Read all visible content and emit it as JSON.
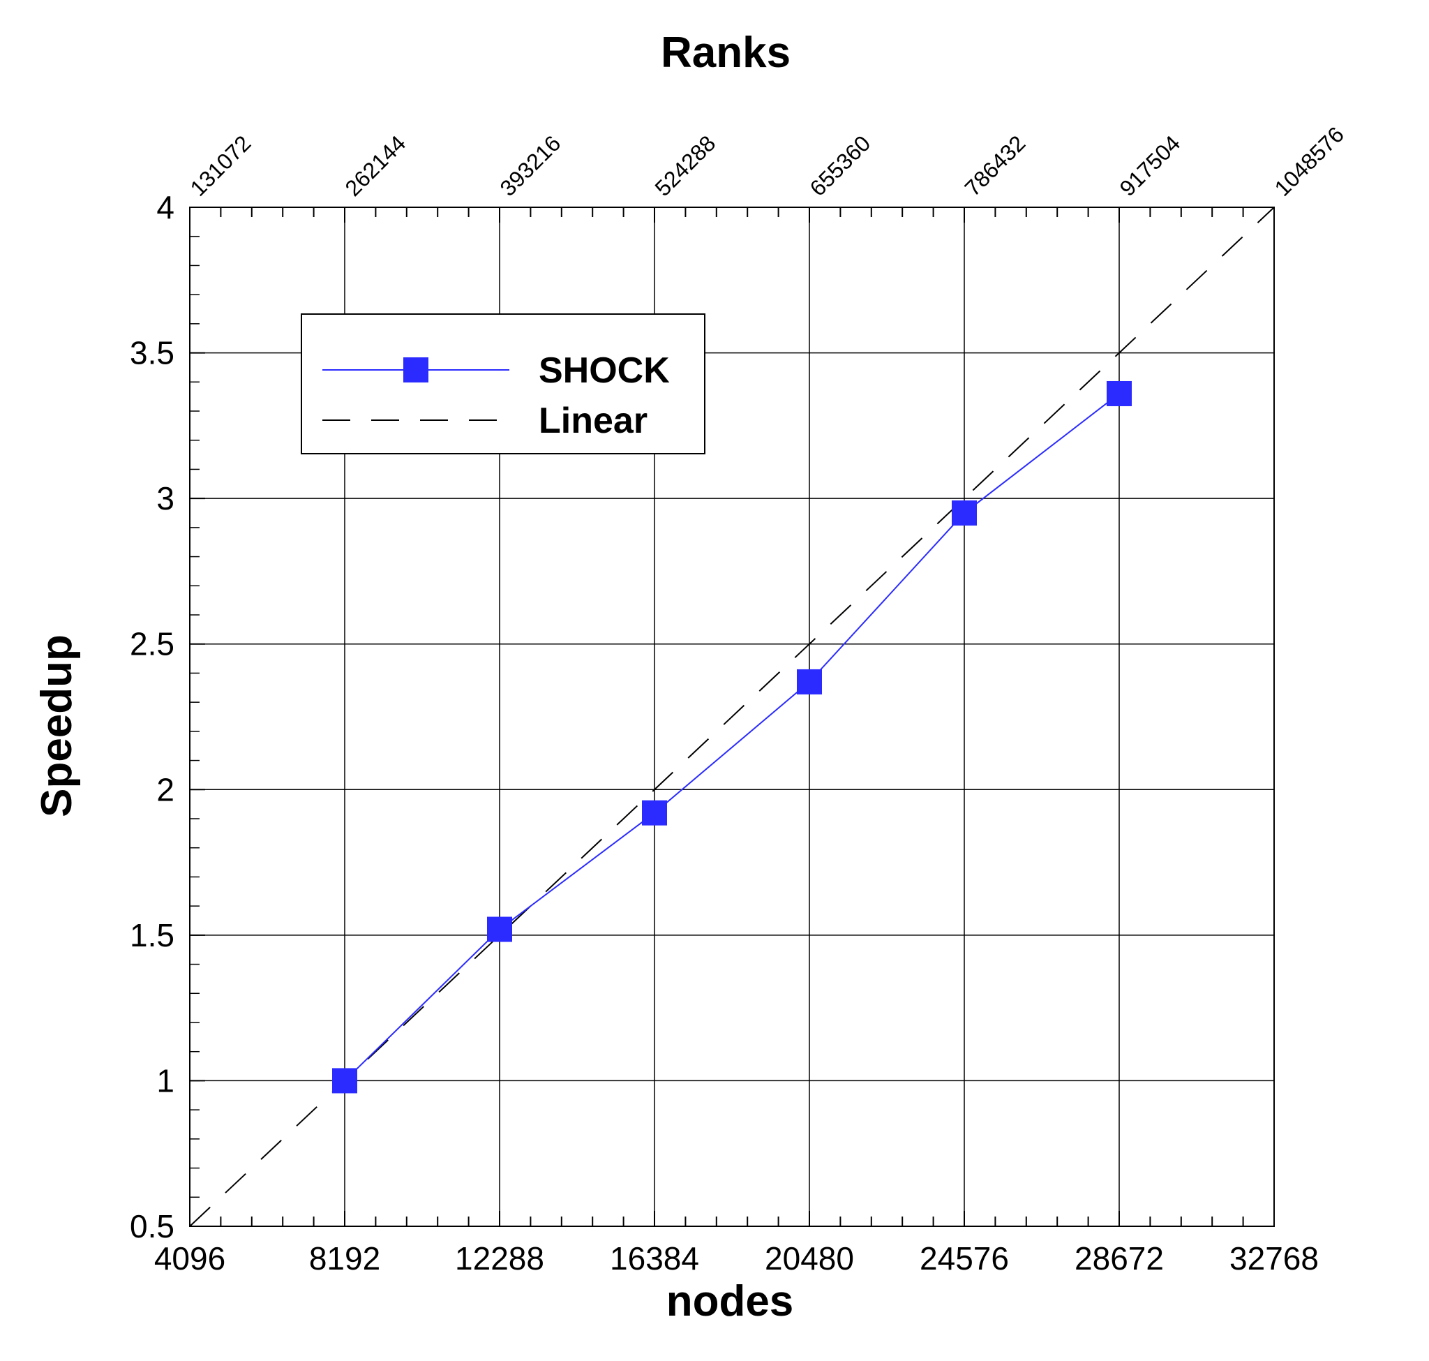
{
  "chart_data": {
    "type": "line",
    "title": "Ranks",
    "xlabel": "nodes",
    "ylabel": "Speedup",
    "x_ticks": [
      4096,
      8192,
      12288,
      16384,
      20480,
      24576,
      28672,
      32768
    ],
    "x_tick_labels": [
      "4096",
      "8192",
      "12288",
      "16384",
      "20480",
      "24576",
      "28672",
      "32768"
    ],
    "xlim": [
      4096,
      32768
    ],
    "top_axis": {
      "label": "Ranks",
      "ticks": [
        "131072",
        "262144",
        "393216",
        "524288",
        "655360",
        "786432",
        "917504",
        "1048576"
      ]
    },
    "y_ticks": [
      0.5,
      1,
      1.5,
      2,
      2.5,
      3,
      3.5,
      4
    ],
    "y_tick_labels": [
      "0.5",
      "1",
      "1.5",
      "2",
      "2.5",
      "3",
      "3.5",
      "4"
    ],
    "ylim": [
      0.5,
      4
    ],
    "grid": true,
    "legend_position": "top-left",
    "series": [
      {
        "name": "SHOCK",
        "color": "#2b2bff",
        "marker": "square",
        "line_style": "solid",
        "x": [
          8192,
          12288,
          16384,
          20480,
          24576,
          28672
        ],
        "y": [
          1.0,
          1.52,
          1.92,
          2.37,
          2.95,
          3.36
        ]
      },
      {
        "name": "Linear",
        "color": "#000000",
        "marker": "none",
        "line_style": "dashed",
        "x": [
          4096,
          32768
        ],
        "y": [
          0.5,
          4.0
        ]
      }
    ]
  }
}
